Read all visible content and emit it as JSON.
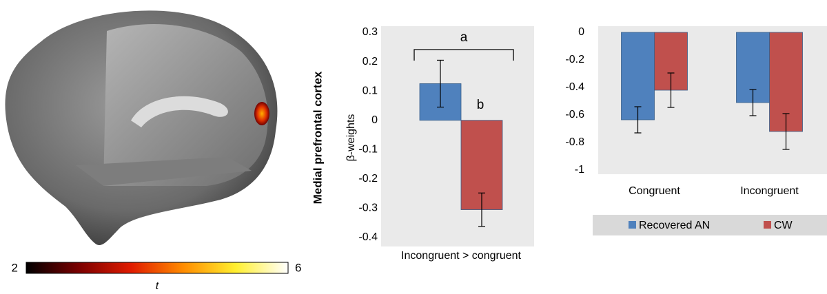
{
  "chart_data": [
    {
      "type": "bar",
      "y_label": "β-weights",
      "side_label": "Medial prefrontal cortex",
      "categories": [
        "Incongruent > congruent"
      ],
      "series": [
        {
          "color": "#4f81bd",
          "values": [
            0.125
          ],
          "errors": [
            0.08
          ]
        },
        {
          "color": "#c0504d",
          "values": [
            -0.305
          ],
          "errors": [
            0.057
          ]
        }
      ],
      "annotations": [
        "a",
        "b"
      ],
      "ylim": [
        -0.4,
        0.3
      ],
      "yticks": [
        -0.4,
        -0.3,
        -0.2,
        -0.1,
        0,
        0.1,
        0.2,
        0.3
      ],
      "grid": false,
      "background": "#eaeaea"
    },
    {
      "type": "bar",
      "categories": [
        "Congruent",
        "Incongruent"
      ],
      "series": [
        {
          "name": "Recovered AN",
          "color": "#4f81bd",
          "values": [
            -0.635,
            -0.51
          ],
          "errors": [
            0.095,
            0.095
          ]
        },
        {
          "name": "CW",
          "color": "#c0504d",
          "values": [
            -0.42,
            -0.72
          ],
          "errors": [
            0.125,
            0.13
          ]
        }
      ],
      "ylim": [
        -1,
        0
      ],
      "yticks": [
        -1,
        -0.8,
        -0.6,
        -0.4,
        -0.2,
        0
      ],
      "grid": false,
      "background": "#eaeaea",
      "legend": "bottom"
    },
    {
      "type": "colorbar",
      "range": [
        2,
        6
      ],
      "label": "t",
      "colormap": [
        "#000000",
        "#7a0000",
        "#e01b00",
        "#ff8c00",
        "#ffef30",
        "#ffffff"
      ]
    }
  ]
}
